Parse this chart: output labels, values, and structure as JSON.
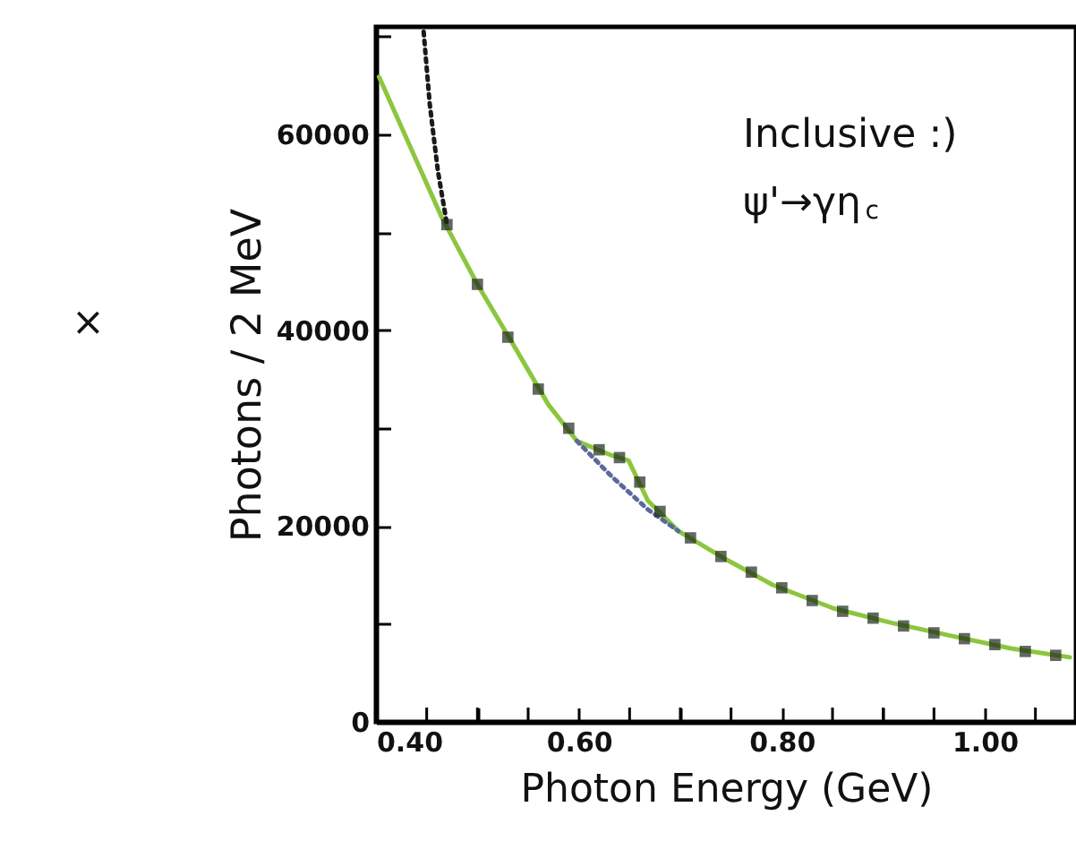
{
  "chart_data": {
    "type": "line",
    "xlabel": "Photon Energy (GeV)",
    "ylabel": "Photons / 2 MeV",
    "annotations": [
      "Inclusive :)",
      "ψ'→γη$_{c}$",
      "×"
    ],
    "xlim": [
      0.4,
      1.09
    ],
    "ylim": [
      0,
      71000
    ],
    "xticks": [
      {
        "value": 0.4,
        "label": "0.40"
      },
      {
        "value": 0.45,
        "label": null
      },
      {
        "value": 0.5,
        "label": null
      },
      {
        "value": 0.55,
        "label": null
      },
      {
        "value": 0.6,
        "label": "0.60"
      },
      {
        "value": 0.65,
        "label": null
      },
      {
        "value": 0.7,
        "label": null
      },
      {
        "value": 0.75,
        "label": null
      },
      {
        "value": 0.8,
        "label": "0.80"
      },
      {
        "value": 0.85,
        "label": null
      },
      {
        "value": 0.9,
        "label": null
      },
      {
        "value": 0.95,
        "label": null
      },
      {
        "value": 1.0,
        "label": "1.00"
      },
      {
        "value": 1.05,
        "label": null
      }
    ],
    "yticks": [
      0,
      {
        "value": 10000,
        "label": null
      },
      20000,
      {
        "value": 30000,
        "label": null
      },
      40000,
      {
        "value": 50000,
        "label": null
      },
      60000,
      {
        "value": 70000,
        "label": null
      }
    ],
    "grid": false,
    "series": [
      {
        "type": "scatter",
        "marker": "square",
        "color": "#1f2a1c",
        "x": [
          0.47,
          0.5,
          0.53,
          0.56,
          0.59,
          0.62,
          0.64,
          0.66,
          0.68,
          0.71,
          0.74,
          0.77,
          0.8,
          0.83,
          0.86,
          0.89,
          0.92,
          0.95,
          0.98,
          1.01,
          1.04,
          1.07
        ],
        "values": [
          50800,
          44700,
          39300,
          34000,
          30000,
          27800,
          27000,
          24500,
          21500,
          18800,
          16900,
          15300,
          13700,
          12400,
          11300,
          10600,
          9800,
          9100,
          8500,
          7900,
          7200,
          6800
        ]
      },
      {
        "line_style": "solid",
        "color": "#8cc63f",
        "x": [
          0.403,
          0.465,
          0.5,
          0.535,
          0.57,
          0.598,
          0.633,
          0.649,
          0.668,
          0.698,
          0.745,
          0.791,
          0.851,
          0.909,
          0.967,
          1.026,
          1.084
        ],
        "values": [
          65900,
          51500,
          44700,
          38600,
          32400,
          28700,
          27200,
          26700,
          22600,
          19500,
          16600,
          14000,
          11600,
          10100,
          8800,
          7500,
          6600
        ]
      },
      {
        "line_style": "dotted",
        "color": "#1a1a1a",
        "x": [
          0.447,
          0.453,
          0.461,
          0.47
        ],
        "values": [
          70500,
          63100,
          56300,
          50800
        ]
      },
      {
        "line_style": "dotted",
        "color": "#5a6a9a",
        "x": [
          0.598,
          0.633,
          0.668,
          0.698
        ],
        "values": [
          28700,
          25000,
          21700,
          19500
        ]
      }
    ]
  }
}
